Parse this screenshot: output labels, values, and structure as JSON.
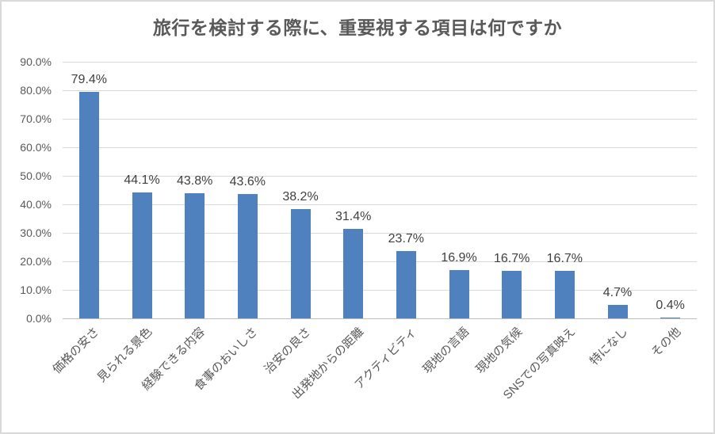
{
  "chart_data": {
    "type": "bar",
    "title": "旅行を検討する際に、重要視する項目は何ですか",
    "categories": [
      "価格の安さ",
      "見られる景色",
      "経験できる内容",
      "食事のおいしさ",
      "治安の良さ",
      "出発地からの距離",
      "アクティビティ",
      "現地の言語",
      "現地の気候",
      "SNSでの写真映え",
      "特になし",
      "その他"
    ],
    "values": [
      79.4,
      44.1,
      43.8,
      43.6,
      38.2,
      31.4,
      23.7,
      16.9,
      16.7,
      16.7,
      4.7,
      0.4
    ],
    "data_labels": [
      "79.4%",
      "44.1%",
      "43.8%",
      "43.6%",
      "38.2%",
      "31.4%",
      "23.7%",
      "16.9%",
      "16.7%",
      "16.7%",
      "4.7%",
      "0.4%"
    ],
    "y_ticks": [
      "0.0%",
      "10.0%",
      "20.0%",
      "30.0%",
      "40.0%",
      "50.0%",
      "60.0%",
      "70.0%",
      "80.0%",
      "90.0%"
    ],
    "ylim": [
      0,
      90
    ],
    "xlabel": "",
    "ylabel": "",
    "grid": true,
    "legend": false,
    "colors": {
      "bar": "#4e81bd",
      "gridline": "#d9d9d9",
      "axis_line": "#bfbfbf",
      "title_text": "#595959",
      "axis_text": "#595959",
      "data_label_text": "#404040",
      "frame_border": "#d9d9d9",
      "background": "#ffffff"
    }
  }
}
